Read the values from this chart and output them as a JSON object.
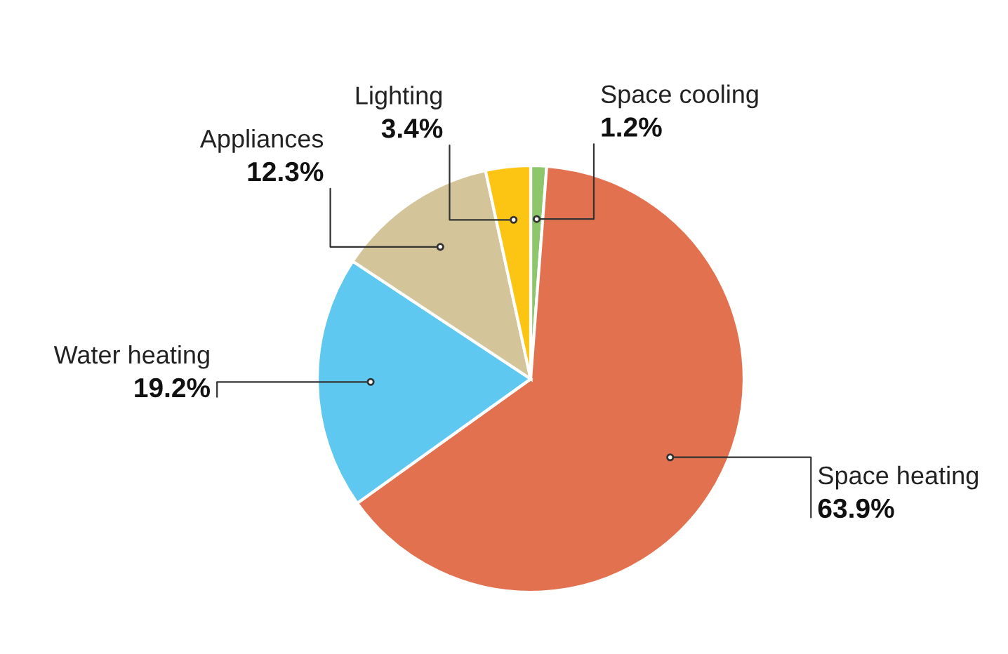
{
  "chart_data": {
    "type": "pie",
    "categories": [
      "Space cooling",
      "Space heating",
      "Water heating",
      "Appliances",
      "Lighting"
    ],
    "values": [
      1.2,
      63.9,
      19.2,
      12.3,
      3.4
    ],
    "colors": [
      "#8dc66b",
      "#e2714f",
      "#5ec8f0",
      "#d4c49a",
      "#fdc513"
    ],
    "value_labels": [
      "1.2%",
      "63.9%",
      "19.2%",
      "12.3%",
      "3.4%"
    ]
  }
}
